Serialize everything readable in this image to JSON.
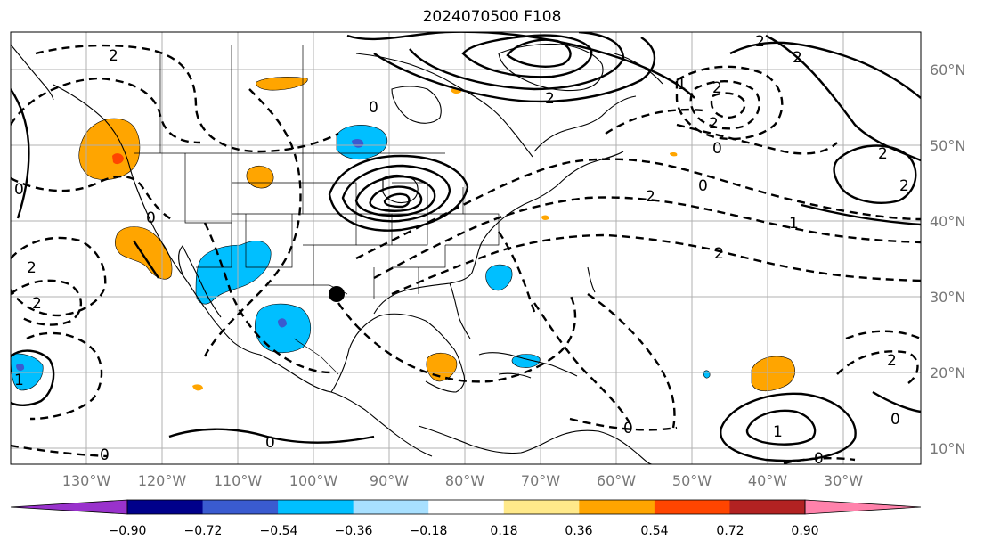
{
  "title": "2024070500 F108",
  "lon_labels": [
    "130°W",
    "120°W",
    "110°W",
    "100°W",
    "90°W",
    "80°W",
    "70°W",
    "60°W",
    "50°W",
    "40°W",
    "30°W"
  ],
  "lat_labels": [
    "60°N",
    "50°N",
    "40°N",
    "30°N",
    "20°N",
    "10°N"
  ],
  "colorbar": {
    "ticks": [
      "−0.90",
      "−0.72",
      "−0.54",
      "−0.36",
      "−0.18",
      "0.18",
      "0.36",
      "0.54",
      "0.72",
      "0.90"
    ],
    "colors": [
      "#9932cc",
      "#00008b",
      "#3a5bd0",
      "#00bfff",
      "#a8e0ff",
      "#ffffff",
      "#ffe98a",
      "#ffa500",
      "#ff4500",
      "#b22222",
      "#ff82ab"
    ]
  },
  "contour_labels": [
    "2",
    "2",
    "2",
    "2",
    "2",
    "2",
    "1",
    "1",
    "0",
    "0",
    "0",
    "0",
    "0",
    "2",
    "2",
    "2",
    "1",
    "0",
    "0",
    "2",
    "2",
    "1",
    "0",
    "0",
    "2",
    "0",
    "2"
  ],
  "marker": "black-circle"
}
